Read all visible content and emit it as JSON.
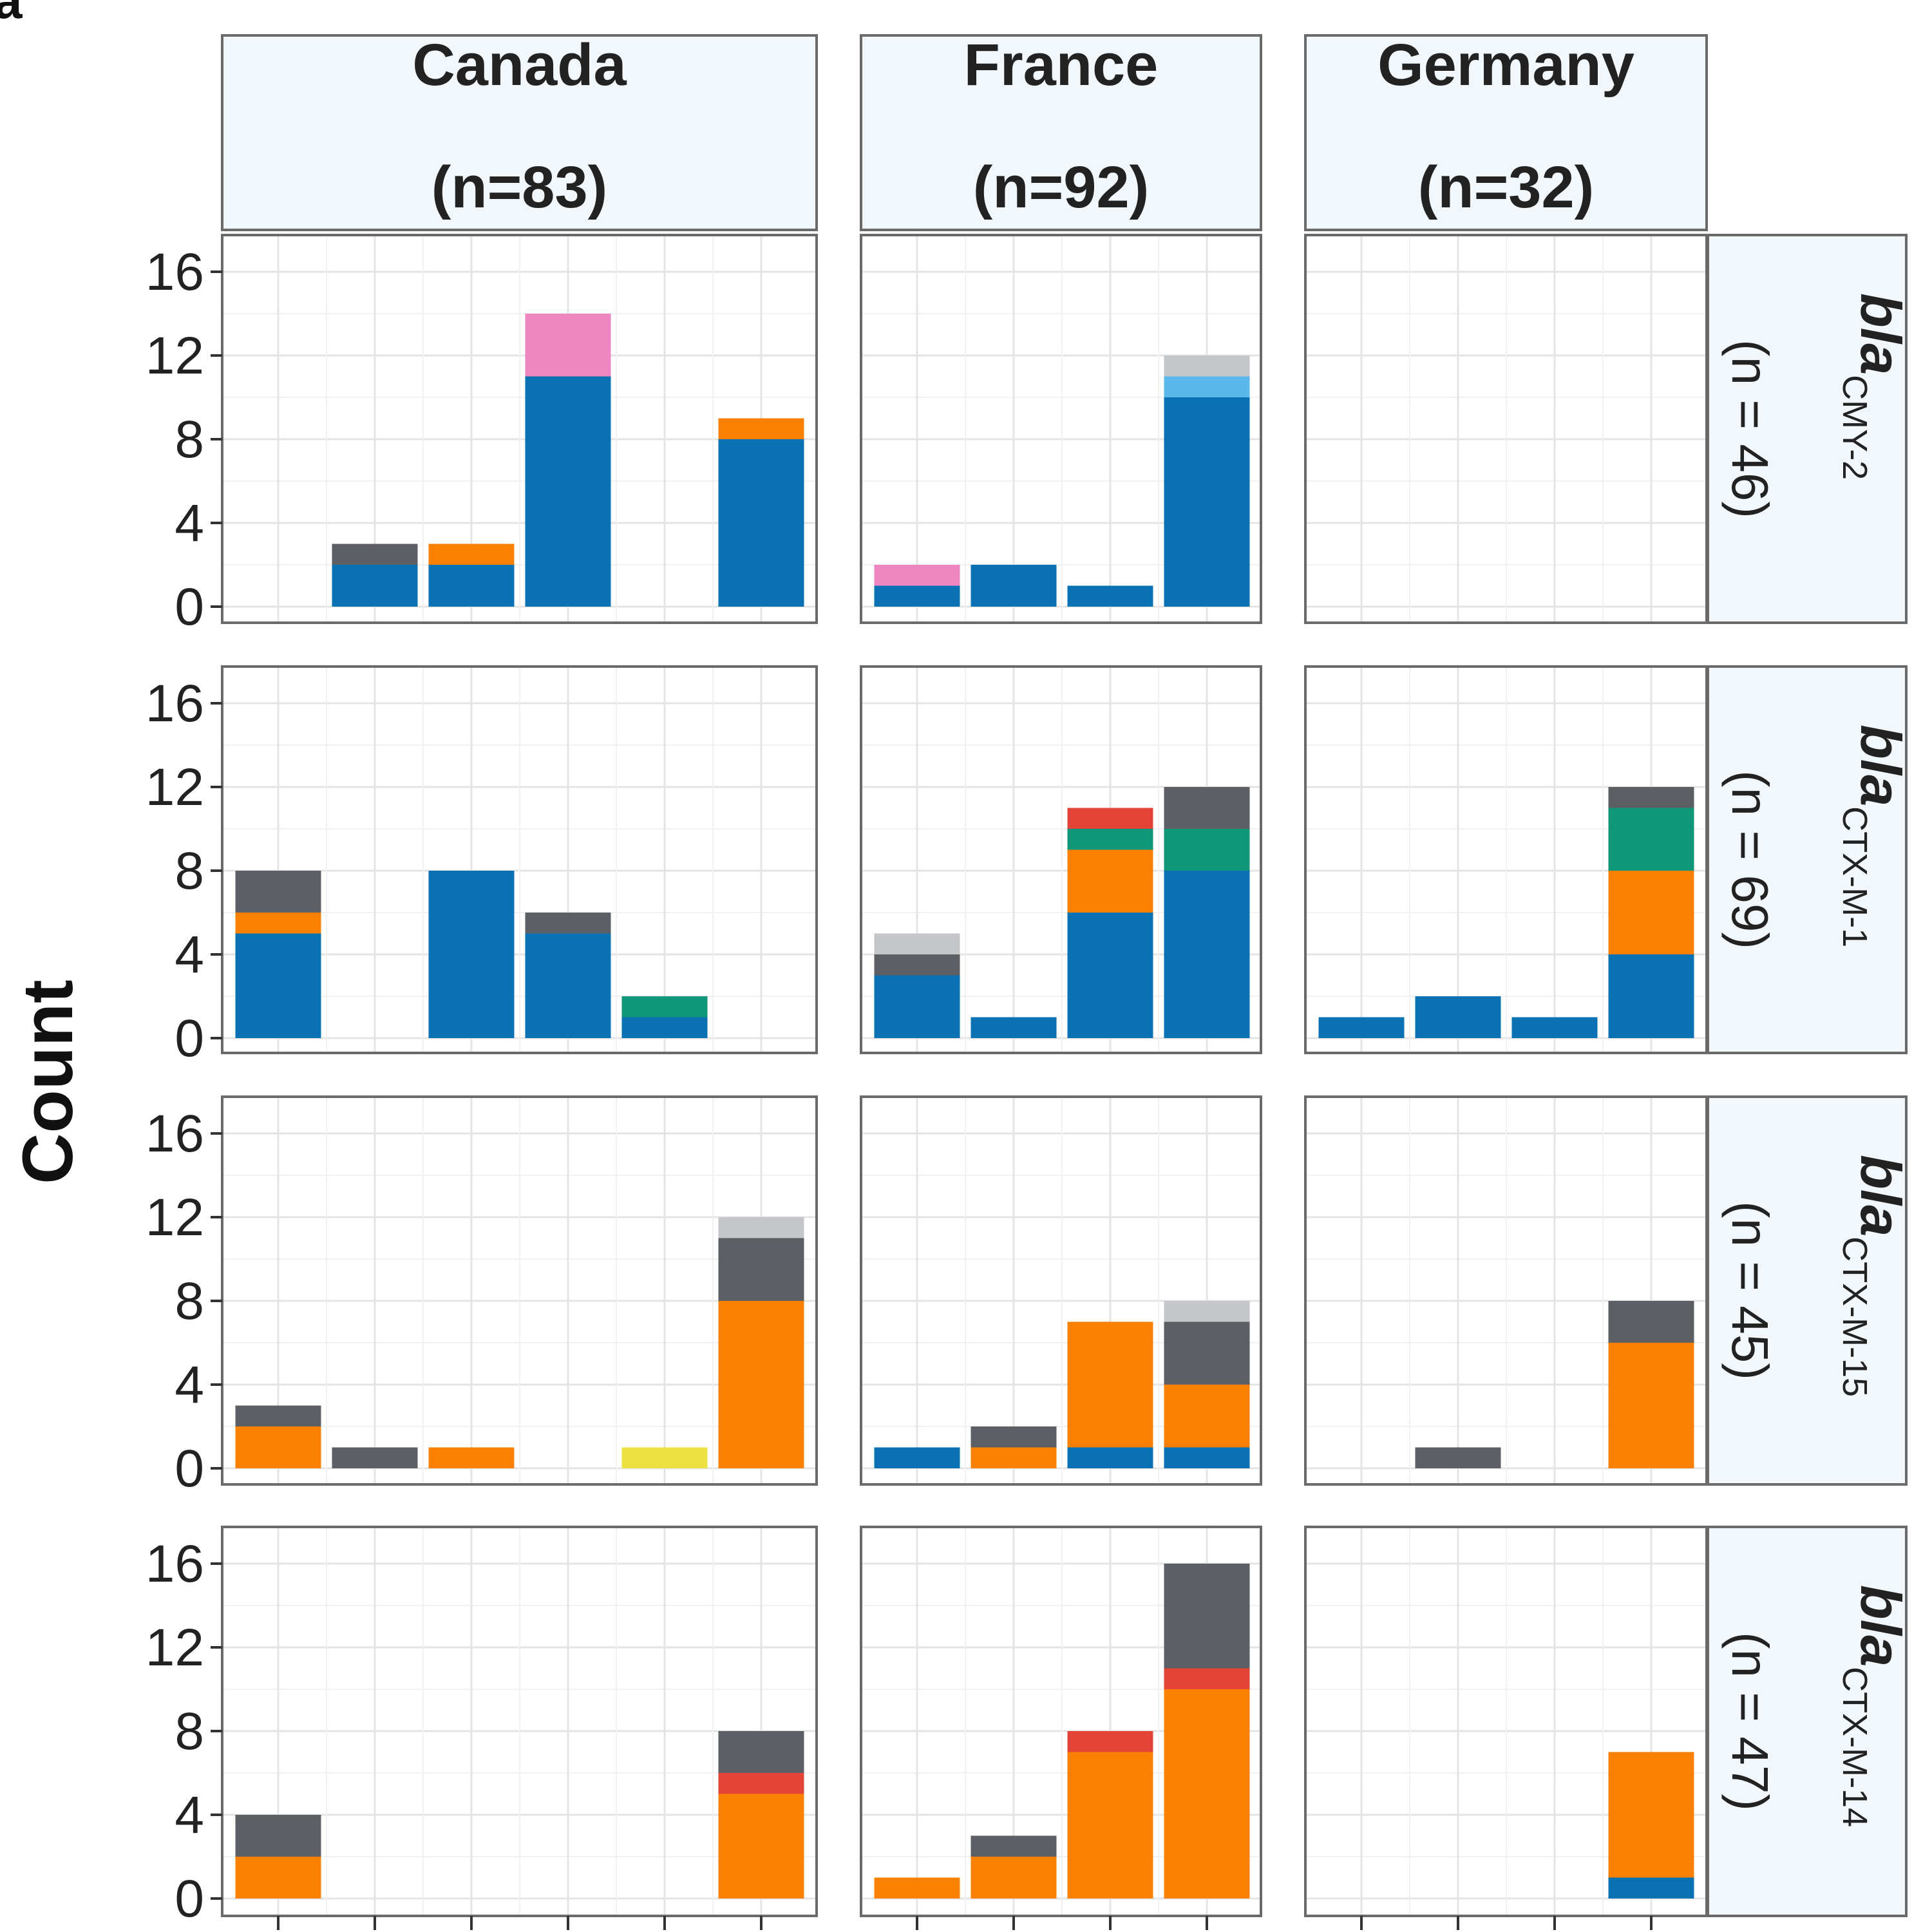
{
  "panel_label": "a",
  "chart_data": {
    "type": "bar",
    "stacked": true,
    "faceted": true,
    "ylabel": "Count",
    "ylim": [
      0,
      17
    ],
    "yticks": [
      0,
      4,
      8,
      12,
      16
    ],
    "grid": true,
    "colors": {
      "blue": "#0a72b3",
      "orange": "#f98000",
      "pink": "#ee86c1",
      "dark_gray": "#5c5f63",
      "light_gray": "#c4c6c9",
      "light_blue": "#5cb7ea",
      "red": "#e34437",
      "green": "#10977a",
      "yellow": "#eee243"
    },
    "columns": [
      {
        "country": "Canada",
        "n": "(n=83)",
        "slots": 6
      },
      {
        "country": "France",
        "n": "(n=92)",
        "slots": 4
      },
      {
        "country": "Germany",
        "n": "(n=32)",
        "slots": 4
      }
    ],
    "rows": [
      {
        "gene": "bla",
        "variant": "CMY-2",
        "n": "(n = 46)"
      },
      {
        "gene": "bla",
        "variant": "CTX-M-1",
        "n": "(n = 69)"
      },
      {
        "gene": "bla",
        "variant": "CTX-M-15",
        "n": "(n = 45)"
      },
      {
        "gene": "bla",
        "variant": "CTX-M-14",
        "n": "(n = 47)"
      }
    ],
    "panels": [
      [
        [
          [],
          [
            [
              "blue",
              2
            ],
            [
              "dark_gray",
              1
            ]
          ],
          [
            [
              "blue",
              2
            ],
            [
              "orange",
              1
            ]
          ],
          [
            [
              "blue",
              11
            ],
            [
              "pink",
              3
            ]
          ],
          [],
          [
            [
              "blue",
              8
            ],
            [
              "orange",
              1
            ]
          ]
        ],
        [
          [
            [
              "blue",
              1
            ],
            [
              "pink",
              1
            ]
          ],
          [
            [
              "blue",
              2
            ]
          ],
          [
            [
              "blue",
              1
            ]
          ],
          [
            [
              "blue",
              10
            ],
            [
              "light_blue",
              1
            ],
            [
              "light_gray",
              1
            ]
          ]
        ],
        [
          [],
          [],
          [],
          []
        ]
      ],
      [
        [
          [
            [
              "blue",
              5
            ],
            [
              "orange",
              1
            ],
            [
              "dark_gray",
              2
            ]
          ],
          [],
          [
            [
              "blue",
              8
            ]
          ],
          [
            [
              "blue",
              5
            ],
            [
              "dark_gray",
              1
            ]
          ],
          [
            [
              "blue",
              1
            ],
            [
              "green",
              1
            ]
          ],
          []
        ],
        [
          [
            [
              "blue",
              3
            ],
            [
              "dark_gray",
              1
            ],
            [
              "light_gray",
              1
            ]
          ],
          [
            [
              "blue",
              1
            ]
          ],
          [
            [
              "blue",
              6
            ],
            [
              "orange",
              3
            ],
            [
              "green",
              1
            ],
            [
              "red",
              1
            ]
          ],
          [
            [
              "blue",
              8
            ],
            [
              "green",
              2
            ],
            [
              "dark_gray",
              2
            ]
          ]
        ],
        [
          [
            [
              "blue",
              1
            ]
          ],
          [
            [
              "blue",
              2
            ]
          ],
          [
            [
              "blue",
              1
            ]
          ],
          [
            [
              "blue",
              4
            ],
            [
              "orange",
              4
            ],
            [
              "green",
              3
            ],
            [
              "dark_gray",
              1
            ]
          ]
        ]
      ],
      [
        [
          [
            [
              "orange",
              2
            ],
            [
              "dark_gray",
              1
            ]
          ],
          [
            [
              "dark_gray",
              1
            ]
          ],
          [
            [
              "orange",
              1
            ]
          ],
          [],
          [
            [
              "yellow",
              1
            ]
          ],
          [
            [
              "orange",
              8
            ],
            [
              "dark_gray",
              3
            ],
            [
              "light_gray",
              1
            ]
          ]
        ],
        [
          [
            [
              "blue",
              1
            ]
          ],
          [
            [
              "orange",
              1
            ],
            [
              "dark_gray",
              1
            ]
          ],
          [
            [
              "blue",
              1
            ],
            [
              "orange",
              6
            ]
          ],
          [
            [
              "blue",
              1
            ],
            [
              "orange",
              3
            ],
            [
              "dark_gray",
              3
            ],
            [
              "light_gray",
              1
            ]
          ]
        ],
        [
          [],
          [
            [
              "dark_gray",
              1
            ]
          ],
          [],
          [
            [
              "orange",
              6
            ],
            [
              "dark_gray",
              2
            ]
          ]
        ]
      ],
      [
        [
          [
            [
              "orange",
              2
            ],
            [
              "dark_gray",
              2
            ]
          ],
          [],
          [],
          [],
          [],
          [
            [
              "orange",
              5
            ],
            [
              "red",
              1
            ],
            [
              "dark_gray",
              2
            ]
          ]
        ],
        [
          [
            [
              "orange",
              1
            ]
          ],
          [
            [
              "orange",
              2
            ],
            [
              "dark_gray",
              1
            ]
          ],
          [
            [
              "orange",
              7
            ],
            [
              "red",
              1
            ]
          ],
          [
            [
              "orange",
              10
            ],
            [
              "red",
              1
            ],
            [
              "dark_gray",
              5
            ]
          ]
        ],
        [
          [],
          [],
          [],
          [
            [
              "blue",
              1
            ],
            [
              "orange",
              6
            ]
          ]
        ]
      ]
    ]
  }
}
